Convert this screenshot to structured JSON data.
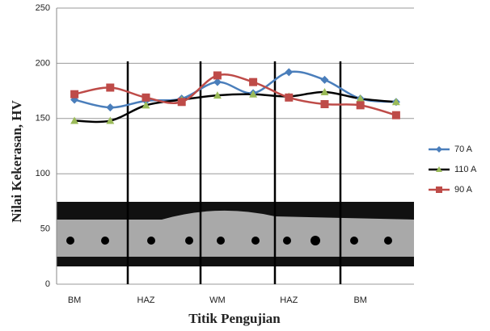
{
  "chart_data": {
    "type": "line",
    "categories": [
      "BM",
      null,
      "HAZ",
      null,
      "WM",
      null,
      "HAZ",
      null,
      "BM",
      null
    ],
    "series": [
      {
        "name": "70 A",
        "color": "#4a7ebb",
        "marker": "diamond",
        "values": [
          167,
          160,
          166,
          168,
          183,
          173,
          192,
          185,
          168,
          165
        ]
      },
      {
        "name": "110 A",
        "color": "#000000",
        "marker_color": "#9bbb59",
        "marker": "triangle",
        "values": [
          148,
          148,
          162,
          167,
          171,
          172,
          170,
          174,
          168,
          165
        ]
      },
      {
        "name": "90 A",
        "color": "#be4b48",
        "marker": "square",
        "values": [
          172,
          178,
          169,
          165,
          189,
          183,
          169,
          163,
          162,
          153
        ]
      }
    ],
    "ylim": [
      0,
      250
    ],
    "yticks": [
      0,
      50,
      100,
      150,
      200,
      250
    ],
    "grid": true,
    "y_label": "Nilai Kekerasan, HV",
    "x_label": "Titik Pengujian",
    "legend": "right"
  }
}
